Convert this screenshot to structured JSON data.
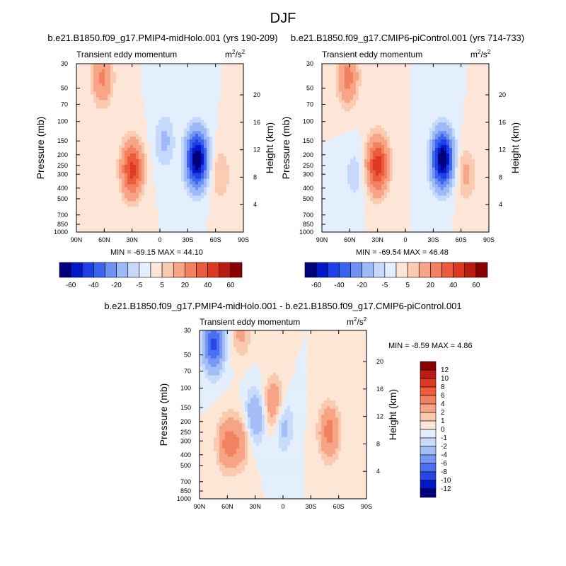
{
  "figure_title": "DJF",
  "colors": {
    "contour_full": [
      "#00007f",
      "#0018c8",
      "#1f3fe6",
      "#3a63f0",
      "#6f92f2",
      "#9db9f7",
      "#c7d9fb",
      "#e4effe",
      "#fde6d8",
      "#fbcbb1",
      "#f7a487",
      "#f3805f",
      "#ec5a3c",
      "#dc3920",
      "#bb1c12",
      "#8a0000"
    ],
    "contour_diff": [
      "#00007f",
      "#0018c8",
      "#2a46e6",
      "#4b6ff1",
      "#7896f3",
      "#a4bdf6",
      "#c8dbfb",
      "#e3eefd",
      "#fde6d6",
      "#fbc9ae",
      "#f7a385",
      "#f3805f",
      "#ee5b3a",
      "#de3a1f",
      "#bd1c12",
      "#8a0000"
    ]
  },
  "chart_data": [
    {
      "type": "contour",
      "title": "b.e21.B1850.f09_g17.PMIP4-midHolo.001 (yrs 190-209)",
      "left_string": "Transient eddy momentum",
      "right_string_base": "m",
      "right_string_sup1": "2",
      "right_string_mid": "/s",
      "right_string_sup2": "2",
      "xlabel": "",
      "ylabel": "Pressure (mb)",
      "y2label": "Height (km)",
      "x_ticks": [
        "90N",
        "60N",
        "30N",
        "0",
        "30S",
        "60S",
        "90S"
      ],
      "x_values": [
        90,
        60,
        30,
        0,
        -30,
        -60,
        -90
      ],
      "y_ticks": [
        "30",
        "50",
        "70",
        "100",
        "150",
        "200",
        "250",
        "300",
        "400",
        "500",
        "700",
        "850",
        "1000"
      ],
      "y_values": [
        30,
        50,
        70,
        100,
        150,
        200,
        250,
        300,
        400,
        500,
        700,
        850,
        1000
      ],
      "height_ticks": [
        "20",
        "16",
        "12",
        "8",
        "4"
      ],
      "height_values": [
        20,
        16,
        12,
        8,
        4
      ],
      "xlim": [
        90,
        -90
      ],
      "ylim": [
        30,
        1000
      ],
      "stats_min_label": "MIN =",
      "stats_min": "-69.15",
      "stats_max_label": "MAX =",
      "stats_max": "44.10",
      "features": [
        {
          "lat": 30,
          "p": 270,
          "peak": 44.1
        },
        {
          "lat": -40,
          "p": 220,
          "peak": -69.15
        },
        {
          "lat": -65,
          "p": 300,
          "peak": 10
        },
        {
          "lat": 62,
          "p": 40,
          "peak": 22
        },
        {
          "lat": -5,
          "p": 150,
          "peak": -12
        }
      ]
    },
    {
      "type": "contour",
      "title": "b.e21.B1850.f09_g17.CMIP6-piControl.001 (yrs 714-733)",
      "left_string": "Transient eddy momentum",
      "right_string_base": "m",
      "right_string_sup1": "2",
      "right_string_mid": "/s",
      "right_string_sup2": "2",
      "xlabel": "",
      "ylabel": "Pressure (mb)",
      "y2label": "Height (km)",
      "x_ticks": [
        "90N",
        "60N",
        "30N",
        "0",
        "30S",
        "60S",
        "90S"
      ],
      "x_values": [
        90,
        60,
        30,
        0,
        -30,
        -60,
        -90
      ],
      "y_ticks": [
        "30",
        "50",
        "70",
        "100",
        "150",
        "200",
        "250",
        "300",
        "400",
        "500",
        "700",
        "850",
        "1000"
      ],
      "y_values": [
        30,
        50,
        70,
        100,
        150,
        200,
        250,
        300,
        400,
        500,
        700,
        850,
        1000
      ],
      "height_ticks": [
        "20",
        "16",
        "12",
        "8",
        "4"
      ],
      "height_values": [
        20,
        16,
        12,
        8,
        4
      ],
      "xlim": [
        90,
        -90
      ],
      "ylim": [
        30,
        1000
      ],
      "stats_min_label": "MIN =",
      "stats_min": "-69.54",
      "stats_max_label": "MAX =",
      "stats_max": "46.48",
      "features": [
        {
          "lat": 30,
          "p": 250,
          "peak": 46.48
        },
        {
          "lat": -40,
          "p": 220,
          "peak": -69.54
        },
        {
          "lat": -65,
          "p": 300,
          "peak": 12
        },
        {
          "lat": 62,
          "p": 40,
          "peak": 24
        },
        {
          "lat": 55,
          "p": 300,
          "peak": -8
        }
      ]
    },
    {
      "type": "contour",
      "title": "b.e21.B1850.f09_g17.PMIP4-midHolo.001 - b.e21.B1850.f09_g17.CMIP6-piControl.001",
      "left_string": "Transient eddy momentum",
      "right_string_base": "m",
      "right_string_sup1": "2",
      "right_string_mid": "/s",
      "right_string_sup2": "2",
      "xlabel": "",
      "ylabel": "Pressure (mb)",
      "y2label": "Height (km)",
      "x_ticks": [
        "90N",
        "60N",
        "30N",
        "0",
        "30S",
        "60S",
        "90S"
      ],
      "x_values": [
        90,
        60,
        30,
        0,
        -30,
        -60,
        -90
      ],
      "y_ticks": [
        "30",
        "50",
        "70",
        "100",
        "150",
        "200",
        "250",
        "300",
        "400",
        "500",
        "700",
        "850",
        "1000"
      ],
      "y_values": [
        30,
        50,
        70,
        100,
        150,
        200,
        250,
        300,
        400,
        500,
        700,
        850,
        1000
      ],
      "height_ticks": [
        "20",
        "16",
        "12",
        "8",
        "4"
      ],
      "height_values": [
        20,
        16,
        12,
        8,
        4
      ],
      "xlim": [
        90,
        -90
      ],
      "ylim": [
        30,
        1000
      ],
      "stats_min_label": "MIN =",
      "stats_min": "-8.59",
      "stats_max_label": "MAX =",
      "stats_max": "4.86",
      "features": [
        {
          "lat": 75,
          "p": 40,
          "peak": -8.59
        },
        {
          "lat": 60,
          "p": 320,
          "peak": 4.5
        },
        {
          "lat": 45,
          "p": 300,
          "peak": 3
        },
        {
          "lat": 10,
          "p": 140,
          "peak": 4
        },
        {
          "lat": -50,
          "p": 250,
          "peak": 4.86
        },
        {
          "lat": 0,
          "p": 210,
          "peak": -3
        },
        {
          "lat": 45,
          "p": 30,
          "peak": 2.5
        },
        {
          "lat": 30,
          "p": 180,
          "peak": -4
        }
      ]
    }
  ],
  "colorbar_full": {
    "labels": [
      "-60",
      "-40",
      "-20",
      "-5",
      "5",
      "20",
      "40",
      "60"
    ],
    "levels": [
      -70,
      -60,
      -50,
      -40,
      -30,
      -20,
      -10,
      -5,
      0,
      5,
      10,
      20,
      30,
      40,
      50,
      60,
      70
    ]
  },
  "colorbar_diff": {
    "labels": [
      "12",
      "10",
      "8",
      "6",
      "4",
      "2",
      "1",
      "0",
      "-1",
      "-2",
      "-4",
      "-6",
      "-8",
      "-10",
      "-12"
    ],
    "levels": [
      -14,
      -12,
      -10,
      -8,
      -6,
      -4,
      -2,
      -1,
      0,
      1,
      2,
      4,
      6,
      8,
      10,
      12,
      14
    ]
  }
}
